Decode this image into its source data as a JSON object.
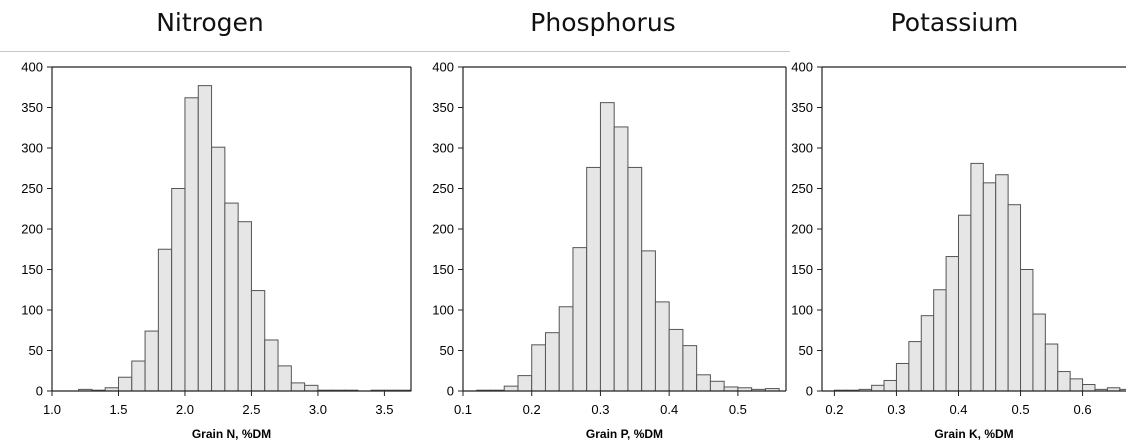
{
  "chart_data": [
    {
      "type": "bar",
      "title": "Nitrogen",
      "xlabel": "Grain N, %DM",
      "ylabel": "",
      "xlim": [
        1.0,
        3.7
      ],
      "ylim": [
        0,
        400
      ],
      "xticks": [
        "1.0",
        "1.5",
        "2.0",
        "2.5",
        "3.0",
        "3.5"
      ],
      "yticks": [
        "0",
        "50",
        "100",
        "150",
        "200",
        "250",
        "300",
        "350",
        "400"
      ],
      "bin_width": 0.1,
      "bin_starts": [
        1.0,
        1.1,
        1.2,
        1.3,
        1.4,
        1.5,
        1.6,
        1.7,
        1.8,
        1.9,
        2.0,
        2.1,
        2.2,
        2.3,
        2.4,
        2.5,
        2.6,
        2.7,
        2.8,
        2.9,
        3.0,
        3.1,
        3.2,
        3.3,
        3.4,
        3.5,
        3.6
      ],
      "values": [
        0,
        0,
        2,
        1,
        4,
        17,
        37,
        74,
        175,
        250,
        362,
        377,
        301,
        232,
        209,
        124,
        63,
        31,
        10,
        7,
        1,
        1,
        1,
        0,
        1,
        1,
        1
      ]
    },
    {
      "type": "bar",
      "title": "Phosphorus",
      "xlabel": "Grain P, %DM",
      "ylabel": "",
      "xlim": [
        0.1,
        0.57
      ],
      "ylim": [
        0,
        400
      ],
      "xticks": [
        "0.1",
        "0.2",
        "0.3",
        "0.4",
        "0.5"
      ],
      "yticks": [
        "0",
        "50",
        "100",
        "150",
        "200",
        "250",
        "300",
        "350",
        "400"
      ],
      "bin_width": 0.02,
      "bin_starts": [
        0.12,
        0.14,
        0.16,
        0.18,
        0.2,
        0.22,
        0.24,
        0.26,
        0.28,
        0.3,
        0.32,
        0.34,
        0.36,
        0.38,
        0.4,
        0.42,
        0.44,
        0.46,
        0.48,
        0.5,
        0.52,
        0.54
      ],
      "values": [
        1,
        1,
        6,
        19,
        57,
        72,
        104,
        177,
        276,
        356,
        326,
        276,
        173,
        110,
        76,
        56,
        20,
        12,
        5,
        4,
        2,
        3
      ]
    },
    {
      "type": "bar",
      "title": "Potassium",
      "xlabel": "Grain K, %DM",
      "ylabel": "",
      "xlim": [
        0.18,
        0.67
      ],
      "ylim": [
        0,
        400
      ],
      "xticks": [
        "0.2",
        "0.3",
        "0.4",
        "0.5",
        "0.6"
      ],
      "yticks": [
        "0",
        "50",
        "100",
        "150",
        "200",
        "250",
        "300",
        "350",
        "400"
      ],
      "bin_width": 0.02,
      "bin_starts": [
        0.2,
        0.22,
        0.24,
        0.26,
        0.28,
        0.3,
        0.32,
        0.34,
        0.36,
        0.38,
        0.4,
        0.42,
        0.44,
        0.46,
        0.48,
        0.5,
        0.52,
        0.54,
        0.56,
        0.58,
        0.6,
        0.62,
        0.64,
        0.66
      ],
      "values": [
        1,
        1,
        2,
        7,
        13,
        34,
        61,
        93,
        125,
        166,
        217,
        281,
        257,
        267,
        230,
        150,
        95,
        58,
        24,
        15,
        8,
        2,
        4,
        2
      ]
    }
  ]
}
